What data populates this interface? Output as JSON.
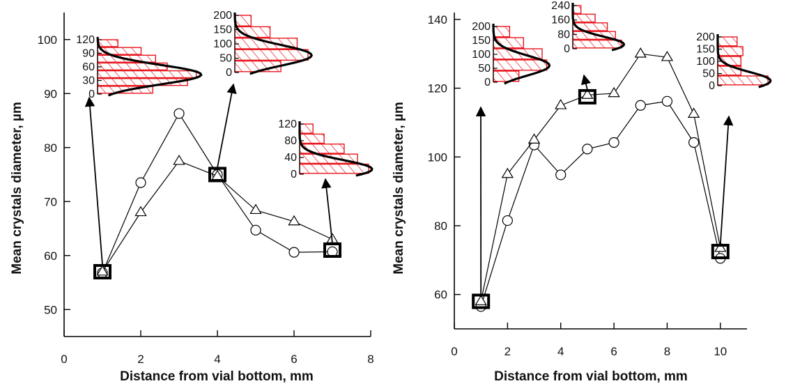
{
  "colors": {
    "axis": "#000000",
    "series": "#000000",
    "histogram": "#e8141c",
    "curve": "#000000"
  },
  "chart_data": [
    {
      "type": "line",
      "xlabel": "Distance from vial bottom, mm",
      "ylabel": "Mean crystals diameter, µm",
      "xlim": [
        0,
        8
      ],
      "ylim": [
        45,
        105
      ],
      "xticks": [
        0,
        2,
        4,
        6,
        8
      ],
      "yticks": [
        50,
        60,
        70,
        80,
        90,
        100
      ],
      "series": [
        {
          "marker": "circle",
          "x": [
            1,
            2,
            3,
            4,
            5,
            6,
            7
          ],
          "y": [
            56.8,
            73.5,
            86.3,
            75.0,
            64.7,
            60.6,
            60.7
          ]
        },
        {
          "marker": "triangle",
          "x": [
            1,
            2,
            3,
            4,
            5,
            6,
            7
          ],
          "y": [
            57.0,
            68.0,
            77.5,
            74.7,
            68.4,
            66.3,
            63.0
          ]
        },
        {
          "marker": "square",
          "x": [
            1,
            4,
            7
          ],
          "y": [
            57.0,
            75.0,
            61.0
          ]
        }
      ],
      "insets": [
        {
          "points_to": [
            1,
            57
          ],
          "ticks": [
            "0",
            "30",
            "60",
            "90",
            "120"
          ],
          "bars": [
            0.95,
            1.55,
            1.7,
            1.2,
            1.0,
            0.75,
            0.35
          ]
        },
        {
          "points_to": [
            4,
            75
          ],
          "ticks": [
            "0",
            "50",
            "100",
            "150",
            "200"
          ],
          "bars": [
            0.85,
            1.35,
            1.15,
            0.65,
            0.3
          ]
        },
        {
          "points_to": [
            7,
            61
          ],
          "ticks": [
            "0",
            "40",
            "80",
            "120"
          ],
          "bars": [
            1.55,
            1.3,
            1.0,
            0.55,
            0.3
          ]
        }
      ]
    },
    {
      "type": "line",
      "xlabel": "Distance from vial bottom, mm",
      "ylabel": "Mean crystals diameter, µm",
      "xlim": [
        0,
        11
      ],
      "ylim": [
        50,
        142
      ],
      "xticks": [
        0,
        2,
        4,
        6,
        8,
        10
      ],
      "yticks": [
        60,
        80,
        100,
        120,
        140
      ],
      "series": [
        {
          "marker": "circle",
          "x": [
            1,
            2,
            3,
            4,
            5,
            6,
            7,
            8,
            9,
            10
          ],
          "y": [
            56.5,
            81.5,
            103.5,
            94.8,
            102.3,
            104.2,
            115.0,
            116.2,
            104.2,
            70.5
          ]
        },
        {
          "marker": "triangle",
          "x": [
            1,
            2,
            3,
            4,
            5,
            6,
            7,
            8,
            9,
            10
          ],
          "y": [
            58.0,
            95.0,
            105.0,
            115.0,
            118.0,
            118.5,
            130.0,
            129.0,
            112.5,
            73.5
          ]
        },
        {
          "marker": "square",
          "x": [
            1,
            5,
            10
          ],
          "y": [
            58.0,
            117.5,
            72.5
          ]
        }
      ],
      "insets": [
        {
          "points_to": [
            1,
            58
          ],
          "ticks": [
            "0",
            "50",
            "100",
            "150",
            "200"
          ],
          "bars": [
            0.55,
            1.15,
            1.05,
            0.65,
            0.35
          ]
        },
        {
          "points_to": [
            5,
            117.5
          ],
          "ticks": [
            "0",
            "80",
            "160",
            "240"
          ],
          "bars": [
            1.2,
            1.05,
            0.85,
            0.55,
            0.2
          ]
        },
        {
          "points_to": [
            10,
            72.5
          ],
          "ticks": [
            "0",
            "50",
            "100",
            "150",
            "200"
          ],
          "bars": [
            1.3,
            0.6,
            0.6,
            0.65,
            0.5
          ]
        }
      ]
    }
  ]
}
